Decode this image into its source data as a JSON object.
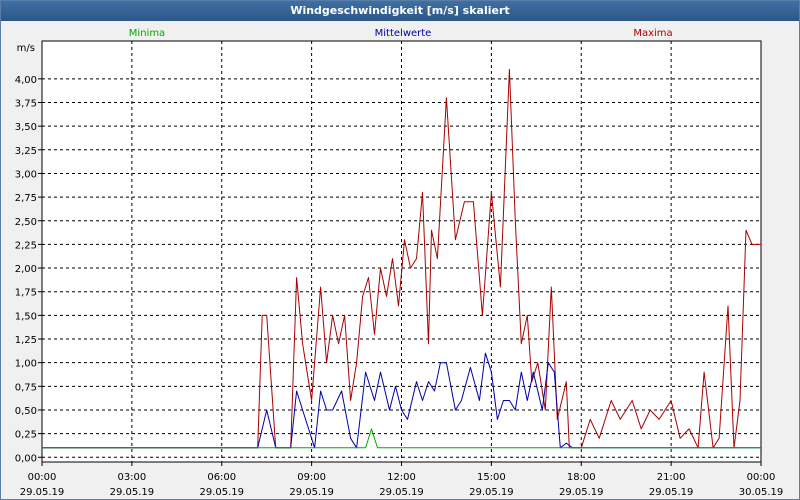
{
  "window": {
    "title": "Windgeschwindigkeit [m/s] skaliert"
  },
  "chart_data": {
    "type": "line",
    "title": "Windgeschwindigkeit [m/s] skaliert",
    "ylabel": "m/s",
    "xlabel": "",
    "ylim": [
      -0.05,
      4.4
    ],
    "xlim": [
      0,
      24
    ],
    "grid": true,
    "y_ticks": [
      "0,00",
      "0,25",
      "0,50",
      "0,75",
      "1,00",
      "1,25",
      "1,50",
      "1,75",
      "2,00",
      "2,25",
      "2,50",
      "2,75",
      "3,00",
      "3,25",
      "3,50",
      "3,75",
      "4,00"
    ],
    "x_ticks": [
      {
        "time": "00:00",
        "date": "29.05.19"
      },
      {
        "time": "03:00",
        "date": "29.05.19"
      },
      {
        "time": "06:00",
        "date": "29.05.19"
      },
      {
        "time": "09:00",
        "date": "29.05.19"
      },
      {
        "time": "12:00",
        "date": "29.05.19"
      },
      {
        "time": "15:00",
        "date": "29.05.19"
      },
      {
        "time": "18:00",
        "date": "29.05.19"
      },
      {
        "time": "21:00",
        "date": "29.05.19"
      },
      {
        "time": "00:00",
        "date": "30.05.19"
      }
    ],
    "series": [
      {
        "name": "Minima",
        "color": "#00aa00",
        "x": [
          0,
          10.8,
          11.0,
          11.2,
          24
        ],
        "y": [
          0.1,
          0.1,
          0.3,
          0.1,
          0.1
        ]
      },
      {
        "name": "Mittelwerte",
        "color": "#0000aa",
        "x": [
          0,
          7.2,
          7.5,
          7.8,
          8.3,
          8.5,
          8.7,
          8.9,
          9.1,
          9.3,
          9.5,
          9.7,
          10.0,
          10.3,
          10.5,
          10.8,
          11.1,
          11.3,
          11.6,
          11.8,
          12.0,
          12.2,
          12.5,
          12.7,
          12.9,
          13.1,
          13.3,
          13.5,
          13.8,
          14.0,
          14.3,
          14.6,
          14.8,
          15.0,
          15.2,
          15.4,
          15.6,
          15.8,
          16.0,
          16.2,
          16.4,
          16.7,
          16.9,
          17.1,
          17.3,
          17.5,
          17.7,
          18.2,
          18.5,
          24
        ],
        "y": [
          0.1,
          0.1,
          0.5,
          0.1,
          0.1,
          0.7,
          0.5,
          0.3,
          0.1,
          0.7,
          0.5,
          0.5,
          0.7,
          0.2,
          0.1,
          0.9,
          0.6,
          0.9,
          0.5,
          0.75,
          0.5,
          0.4,
          0.8,
          0.6,
          0.8,
          0.7,
          1.0,
          1.0,
          0.5,
          0.6,
          0.95,
          0.6,
          1.1,
          0.9,
          0.4,
          0.6,
          0.6,
          0.5,
          0.9,
          0.6,
          0.9,
          0.5,
          1.0,
          0.9,
          0.1,
          0.15,
          0.1,
          0.1,
          0.1,
          0.1
        ]
      },
      {
        "name": "Maxima",
        "color": "#aa0000",
        "x": [
          0,
          7.2,
          7.35,
          7.5,
          7.8,
          8.3,
          8.5,
          8.7,
          9.0,
          9.3,
          9.5,
          9.7,
          9.9,
          10.1,
          10.3,
          10.5,
          10.7,
          10.9,
          11.1,
          11.3,
          11.5,
          11.7,
          11.9,
          12.1,
          12.3,
          12.5,
          12.7,
          12.9,
          13.0,
          13.2,
          13.5,
          13.8,
          14.1,
          14.4,
          14.7,
          15.0,
          15.3,
          15.6,
          15.8,
          16.0,
          16.2,
          16.35,
          16.55,
          16.8,
          17.0,
          17.2,
          17.5,
          17.6,
          17.8,
          18.0,
          18.3,
          18.6,
          19.0,
          19.3,
          19.7,
          20.0,
          20.3,
          20.6,
          21.0,
          21.3,
          21.6,
          21.9,
          22.1,
          22.4,
          22.6,
          22.9,
          23.1,
          23.3,
          23.5,
          23.7,
          23.9,
          24.0
        ],
        "y": [
          0.1,
          0.1,
          1.5,
          1.5,
          0.1,
          0.1,
          1.9,
          1.2,
          0.6,
          1.8,
          1.0,
          1.5,
          1.2,
          1.5,
          0.6,
          1.0,
          1.7,
          1.9,
          1.3,
          2.0,
          1.7,
          2.1,
          1.6,
          2.3,
          2.0,
          2.1,
          2.8,
          1.2,
          2.4,
          2.1,
          3.8,
          2.3,
          2.7,
          2.7,
          1.5,
          2.8,
          1.8,
          4.1,
          2.5,
          1.2,
          1.5,
          0.8,
          1.0,
          0.5,
          1.8,
          0.4,
          0.8,
          0.1,
          0.1,
          0.1,
          0.4,
          0.2,
          0.6,
          0.4,
          0.6,
          0.3,
          0.5,
          0.4,
          0.6,
          0.2,
          0.3,
          0.1,
          0.9,
          0.1,
          0.2,
          1.6,
          0.1,
          0.6,
          2.4,
          2.25,
          2.25,
          2.25
        ]
      }
    ]
  }
}
